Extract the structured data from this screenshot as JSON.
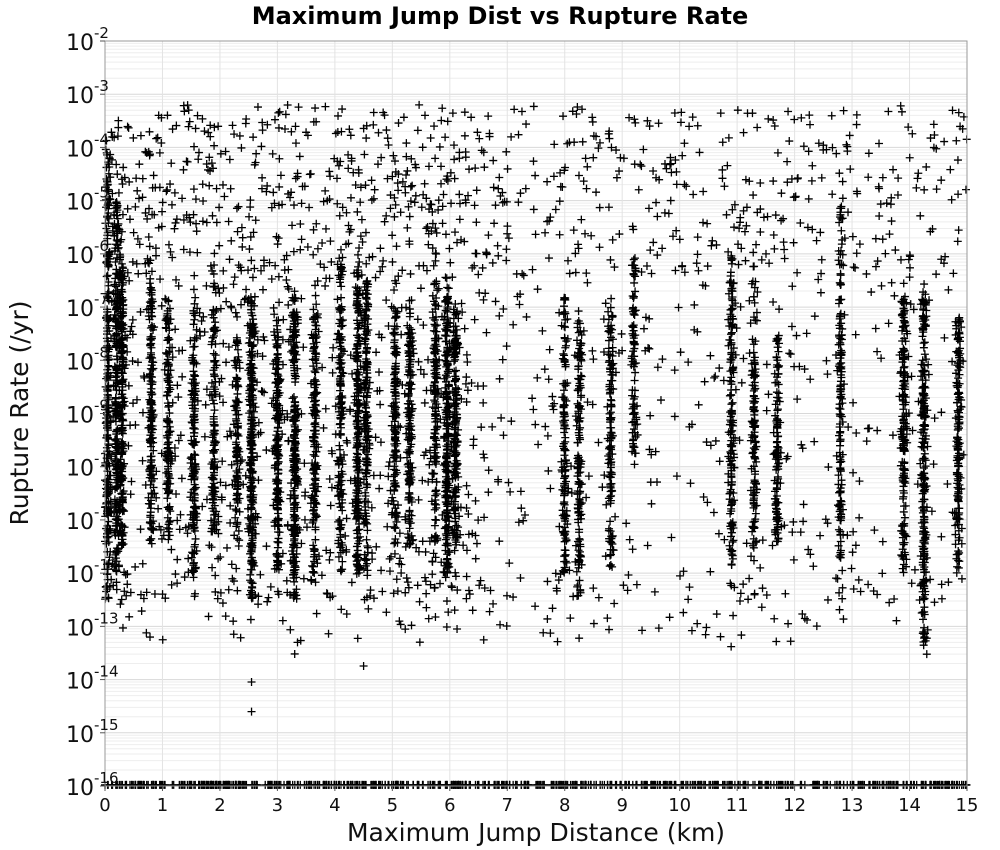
{
  "chart_data": {
    "type": "scatter",
    "title": "Maximum Jump Dist vs Rupture Rate",
    "xlabel": "Maximum Jump Distance (km)",
    "ylabel": "Rupture Rate (/yr)",
    "xlim": [
      0,
      15
    ],
    "ylim": [
      1e-16,
      0.01
    ],
    "yscale": "log",
    "x_ticks": [
      "0",
      "1",
      "2",
      "3",
      "4",
      "5",
      "6",
      "7",
      "8",
      "9",
      "10",
      "11",
      "12",
      "13",
      "14",
      "15"
    ],
    "y_tick_exponents": [
      "-16",
      "-15",
      "-14",
      "-13",
      "-12",
      "-11",
      "-10",
      "-9",
      "-8",
      "-7",
      "-6",
      "-5",
      "-4",
      "-3",
      "-2"
    ],
    "y_tick_base": "10",
    "grid": true,
    "marker": "+",
    "marker_color": "#000000",
    "note": "Dense scatter; points are concentrated in vertical columns at discrete jump distances. Values below ~1e-16 are clamped to the bottom axis.",
    "column_clusters": [
      {
        "x": 0.05,
        "y_min_exp": -12.5,
        "y_max_exp": -4.0,
        "density": 1.0
      },
      {
        "x": 0.2,
        "y_min_exp": -12.0,
        "y_max_exp": -5.0,
        "density": 0.9
      },
      {
        "x": 0.3,
        "y_min_exp": -11.5,
        "y_max_exp": -6.0,
        "density": 0.8
      },
      {
        "x": 0.8,
        "y_min_exp": -11.5,
        "y_max_exp": -6.5,
        "density": 0.6
      },
      {
        "x": 1.1,
        "y_min_exp": -11.5,
        "y_max_exp": -6.8,
        "density": 0.45
      },
      {
        "x": 1.55,
        "y_min_exp": -12.0,
        "y_max_exp": -6.8,
        "density": 0.6
      },
      {
        "x": 1.9,
        "y_min_exp": -11.5,
        "y_max_exp": -6.5,
        "density": 0.45
      },
      {
        "x": 2.3,
        "y_min_exp": -11.5,
        "y_max_exp": -7.5,
        "density": 0.4
      },
      {
        "x": 2.55,
        "y_min_exp": -12.5,
        "y_max_exp": -6.8,
        "density": 1.0
      },
      {
        "x": 3.0,
        "y_min_exp": -12.0,
        "y_max_exp": -7.2,
        "density": 0.7
      },
      {
        "x": 3.3,
        "y_min_exp": -12.5,
        "y_max_exp": -6.7,
        "density": 1.0
      },
      {
        "x": 3.65,
        "y_min_exp": -12.0,
        "y_max_exp": -7.0,
        "density": 0.6
      },
      {
        "x": 4.1,
        "y_min_exp": -12.0,
        "y_max_exp": -6.0,
        "density": 0.6
      },
      {
        "x": 4.4,
        "y_min_exp": -12.0,
        "y_max_exp": -6.0,
        "density": 0.85
      },
      {
        "x": 4.55,
        "y_min_exp": -12.0,
        "y_max_exp": -6.5,
        "density": 0.7
      },
      {
        "x": 5.05,
        "y_min_exp": -11.5,
        "y_max_exp": -7.0,
        "density": 0.55
      },
      {
        "x": 5.3,
        "y_min_exp": -11.5,
        "y_max_exp": -7.0,
        "density": 0.6
      },
      {
        "x": 5.75,
        "y_min_exp": -11.5,
        "y_max_exp": -6.5,
        "density": 0.5
      },
      {
        "x": 5.95,
        "y_min_exp": -12.0,
        "y_max_exp": -6.8,
        "density": 0.9
      },
      {
        "x": 6.1,
        "y_min_exp": -11.5,
        "y_max_exp": -6.8,
        "density": 0.7
      },
      {
        "x": 8.0,
        "y_min_exp": -12.0,
        "y_max_exp": -6.8,
        "density": 0.5
      },
      {
        "x": 8.25,
        "y_min_exp": -12.5,
        "y_max_exp": -7.2,
        "density": 0.55
      },
      {
        "x": 8.8,
        "y_min_exp": -12.0,
        "y_max_exp": -7.0,
        "density": 0.45
      },
      {
        "x": 9.2,
        "y_min_exp": -10.0,
        "y_max_exp": -6.0,
        "density": 0.3
      },
      {
        "x": 10.9,
        "y_min_exp": -12.0,
        "y_max_exp": -6.0,
        "density": 0.6
      },
      {
        "x": 11.3,
        "y_min_exp": -11.5,
        "y_max_exp": -6.5,
        "density": 0.45
      },
      {
        "x": 11.7,
        "y_min_exp": -11.5,
        "y_max_exp": -7.5,
        "density": 0.45
      },
      {
        "x": 12.8,
        "y_min_exp": -12.5,
        "y_max_exp": -5.0,
        "density": 0.6
      },
      {
        "x": 13.9,
        "y_min_exp": -12.0,
        "y_max_exp": -6.8,
        "density": 0.7
      },
      {
        "x": 14.25,
        "y_min_exp": -13.3,
        "y_max_exp": -6.7,
        "density": 0.9
      },
      {
        "x": 14.85,
        "y_min_exp": -12.0,
        "y_max_exp": -7.2,
        "density": 0.6
      }
    ],
    "outliers": [
      {
        "x": 2.55,
        "y": 9e-15
      },
      {
        "x": 2.55,
        "y": 2.5e-15
      },
      {
        "x": 4.5,
        "y": 1.8e-14
      },
      {
        "x": 3.35,
        "y": 5e-14
      },
      {
        "x": 14.3,
        "y": 3e-14
      },
      {
        "x": 14.3,
        "y": 6e-14
      },
      {
        "x": 8.25,
        "y": 6e-14
      },
      {
        "x": 11.05,
        "y": 3e-13
      },
      {
        "x": 5.75,
        "y": 1.5e-13
      }
    ]
  }
}
